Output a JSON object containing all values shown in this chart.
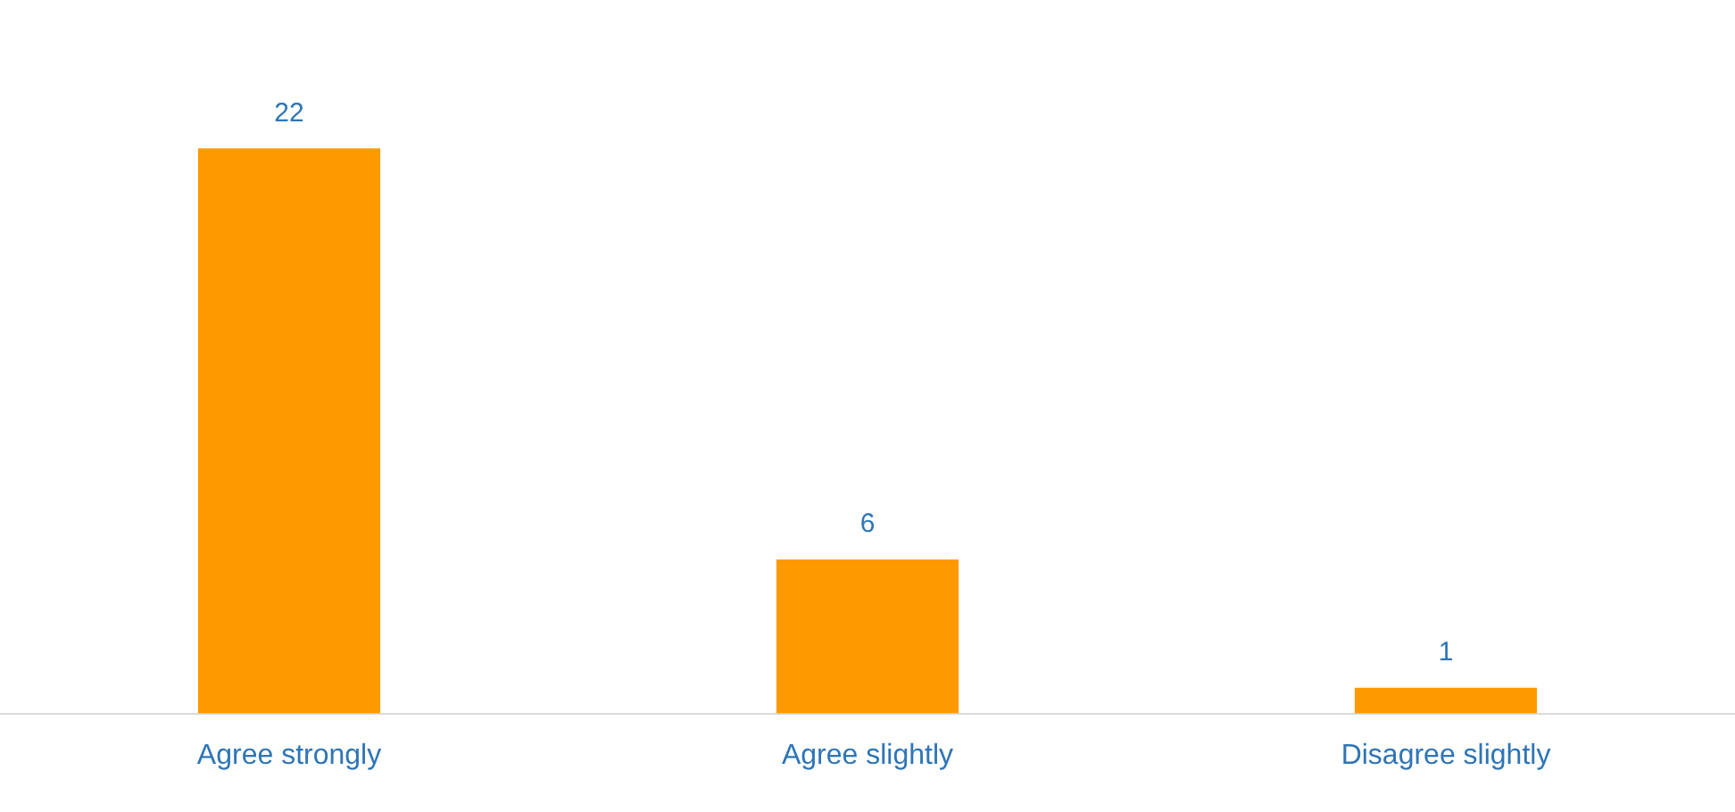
{
  "chart_data": {
    "type": "bar",
    "categories": [
      "Agree strongly",
      "Agree slightly",
      "Disagree slightly"
    ],
    "values": [
      22,
      6,
      1
    ],
    "color": "#ff9900",
    "data_labels": true,
    "grid": false,
    "legend": false
  }
}
